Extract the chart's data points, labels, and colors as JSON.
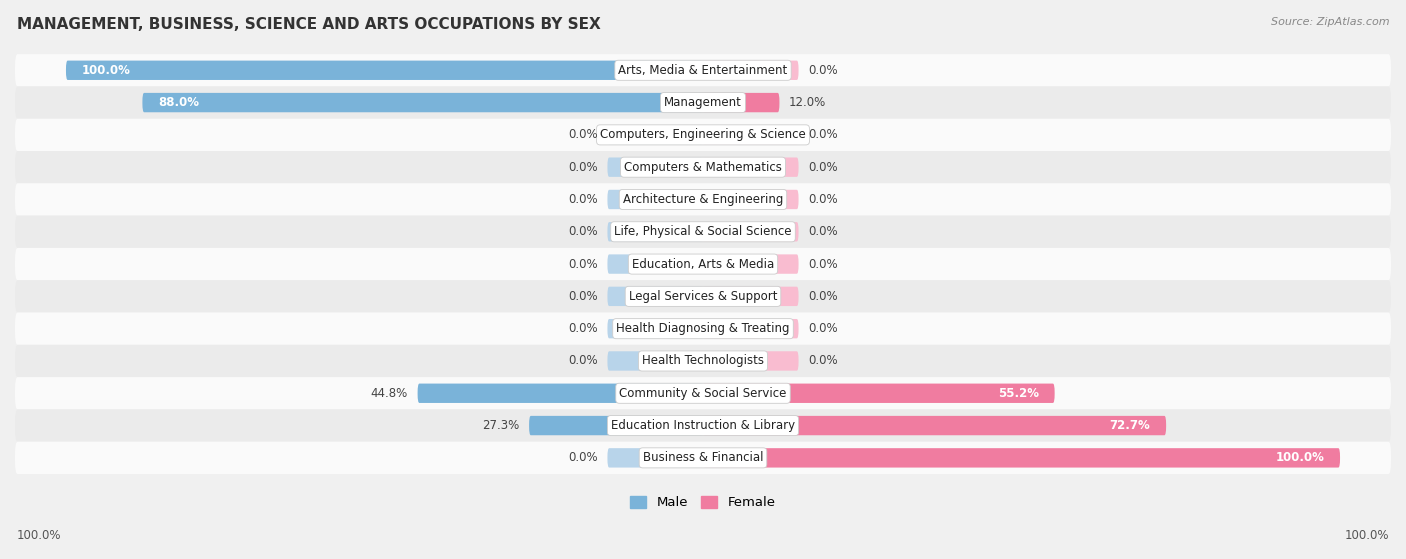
{
  "title": "MANAGEMENT, BUSINESS, SCIENCE AND ARTS OCCUPATIONS BY SEX",
  "source": "Source: ZipAtlas.com",
  "categories": [
    "Arts, Media & Entertainment",
    "Management",
    "Computers, Engineering & Science",
    "Computers & Mathematics",
    "Architecture & Engineering",
    "Life, Physical & Social Science",
    "Education, Arts & Media",
    "Legal Services & Support",
    "Health Diagnosing & Treating",
    "Health Technologists",
    "Community & Social Service",
    "Education Instruction & Library",
    "Business & Financial"
  ],
  "male_values": [
    100.0,
    88.0,
    0.0,
    0.0,
    0.0,
    0.0,
    0.0,
    0.0,
    0.0,
    0.0,
    44.8,
    27.3,
    0.0
  ],
  "female_values": [
    0.0,
    12.0,
    0.0,
    0.0,
    0.0,
    0.0,
    0.0,
    0.0,
    0.0,
    0.0,
    55.2,
    72.7,
    100.0
  ],
  "male_color": "#7ab3d9",
  "female_color": "#f07ca0",
  "male_stub_color": "#b8d4ea",
  "female_stub_color": "#f9bcd0",
  "male_label": "Male",
  "female_label": "Female",
  "bg_color": "#f0f0f0",
  "row_even_color": "#fafafa",
  "row_odd_color": "#ebebeb",
  "label_fontsize": 8.5,
  "title_fontsize": 11,
  "source_fontsize": 8,
  "axis_label_left": "100.0%",
  "axis_label_right": "100.0%",
  "stub_size": 15
}
